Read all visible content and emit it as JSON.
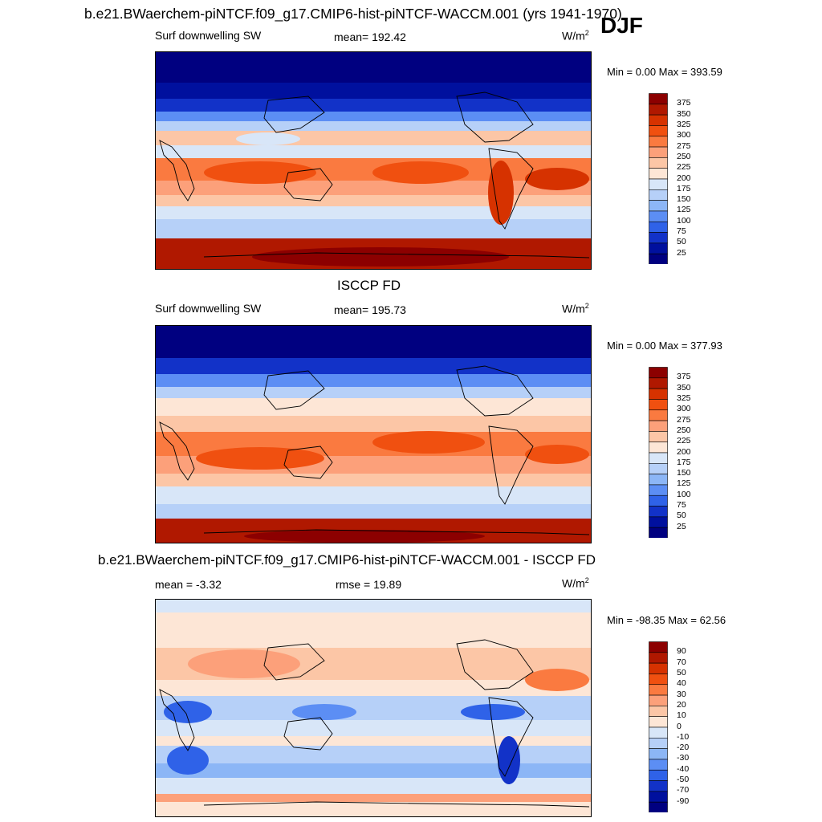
{
  "figure": {
    "main_title": "b.e21.BWaerchem-piNTCF.f09_g17.CMIP6-hist-piNTCF-WACCM.001 (yrs 1941-1970)",
    "season": "DJF"
  },
  "chart_data": [
    {
      "type": "heatmap",
      "title": "",
      "variable": "Surf downwelling SW",
      "stat_text": "mean= 192.42",
      "units": "W/m",
      "units_exp": "2",
      "minmax_text": "Min =   0.00 Max = 393.59",
      "stats": {
        "mean": 192.42,
        "min": 0.0,
        "max": 393.59
      },
      "colorbar": {
        "levels": [
          25,
          50,
          75,
          100,
          125,
          150,
          175,
          200,
          225,
          250,
          275,
          300,
          325,
          350,
          375
        ],
        "labels": [
          "375",
          "350",
          "325",
          "300",
          "275",
          "250",
          "225",
          "200",
          "175",
          "150",
          "125",
          "100",
          "75",
          "50",
          "25"
        ],
        "colors": [
          "#8c0000",
          "#b01800",
          "#d63200",
          "#f05010",
          "#fa7a40",
          "#fca07a",
          "#fcc6a6",
          "#fde6d6",
          "#d8e6f8",
          "#b6d0f8",
          "#8cb6f6",
          "#5c8ef4",
          "#2f62e8",
          "#1232c8",
          "#00109e",
          "#000080"
        ]
      }
    },
    {
      "type": "heatmap",
      "title": "ISCCP FD",
      "variable": "Surf downwelling SW",
      "stat_text": "mean= 195.73",
      "units": "W/m",
      "units_exp": "2",
      "minmax_text": "Min =   0.00 Max = 377.93",
      "stats": {
        "mean": 195.73,
        "min": 0.0,
        "max": 377.93
      },
      "colorbar": {
        "levels": [
          25,
          50,
          75,
          100,
          125,
          150,
          175,
          200,
          225,
          250,
          275,
          300,
          325,
          350,
          375
        ],
        "labels": [
          "375",
          "350",
          "325",
          "300",
          "275",
          "250",
          "225",
          "200",
          "175",
          "150",
          "125",
          "100",
          "75",
          "50",
          "25"
        ],
        "colors": [
          "#8c0000",
          "#b01800",
          "#d63200",
          "#f05010",
          "#fa7a40",
          "#fca07a",
          "#fcc6a6",
          "#fde6d6",
          "#d8e6f8",
          "#b6d0f8",
          "#8cb6f6",
          "#5c8ef4",
          "#2f62e8",
          "#1232c8",
          "#00109e",
          "#000080"
        ]
      }
    },
    {
      "type": "heatmap",
      "title": "b.e21.BWaerchem-piNTCF.f09_g17.CMIP6-hist-piNTCF-WACCM.001 - ISCCP FD",
      "variable": "",
      "left_text": "mean =  -3.32",
      "stat_text": "rmse =  19.89",
      "units": "W/m",
      "units_exp": "2",
      "minmax_text": "Min = -98.35 Max =  62.56",
      "stats": {
        "mean": -3.32,
        "rmse": 19.89,
        "min": -98.35,
        "max": 62.56
      },
      "colorbar": {
        "levels": [
          -90,
          -70,
          -50,
          -40,
          -30,
          -20,
          -10,
          0,
          10,
          20,
          30,
          40,
          50,
          70,
          90
        ],
        "labels": [
          "90",
          "70",
          "50",
          "40",
          "30",
          "20",
          "10",
          "0",
          "-10",
          "-20",
          "-30",
          "-40",
          "-50",
          "-70",
          "-90"
        ],
        "colors": [
          "#8c0000",
          "#b01800",
          "#d63200",
          "#f05010",
          "#fa7a40",
          "#fca07a",
          "#fcc6a6",
          "#fde6d6",
          "#d8e6f8",
          "#b6d0f8",
          "#8cb6f6",
          "#5c8ef4",
          "#2f62e8",
          "#1232c8",
          "#00109e",
          "#000080"
        ]
      }
    }
  ]
}
